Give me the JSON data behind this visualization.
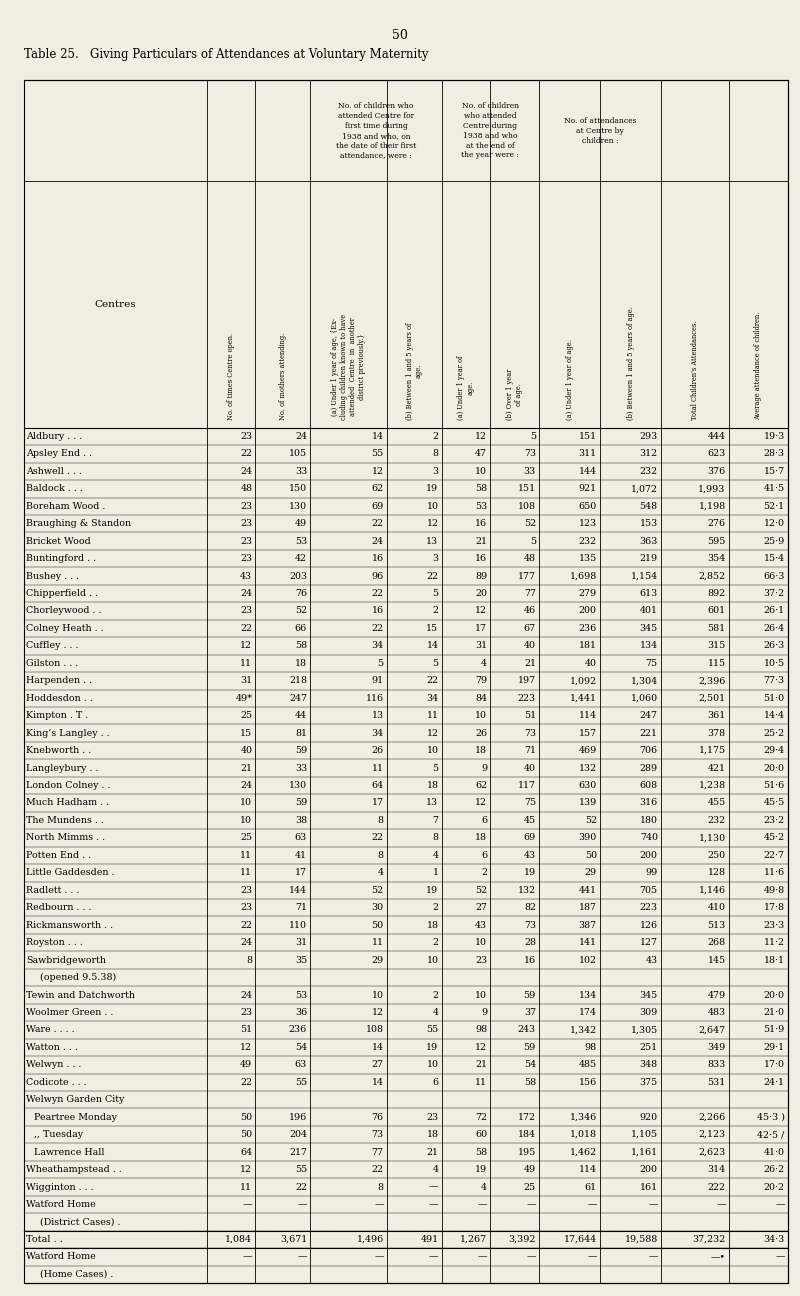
{
  "page_number": "50",
  "title_line1": "Table 25.",
  "title_line2": "Giving Particulars of Attendances at Voluntary Maternity",
  "bg_color": "#f2ede0",
  "group1_text": "No. of children who\nattended Centre for\nfirst time during\n1938 and who, on\nthe date of their first\nattendance, were :",
  "group2_text": "No. of children\nwho attended\nCentre during\n1938 and who\nat the end of\nthe year were :",
  "group3_text": "No. of attendances\nat Centre by\nchildren :",
  "col_header_0": "Centres",
  "col_header_1": "No. of times Centre open.",
  "col_header_2": "No. of mothers attending.",
  "col_header_3": "(a) Under 1 year of age, {Ex-\ncluding children known to have\nattended  Centre  in  another\ndistrict previously.}",
  "col_header_4": "(b) Between 1 and 5 years of\nage.",
  "col_header_5": "(a) Under 1 year of\nage.",
  "col_header_6": "(b) Over 1 year\nof age.",
  "col_header_7": "(a) Under 1 year of age.",
  "col_header_8": "(b) Between 1 and 5 years of age.",
  "col_header_9": "Total Children's Attendances.",
  "col_header_10": "Average attendance of children.",
  "rows": [
    [
      "Aldbury . . .",
      "23",
      "24",
      "14",
      "2",
      "12",
      "5",
      "151",
      "293",
      "444",
      "19·3"
    ],
    [
      "Apsley End . .",
      "22",
      "105",
      "55",
      "8",
      "47",
      "73",
      "311",
      "312",
      "623",
      "28·3"
    ],
    [
      "Ashwell . . .",
      "24",
      "33",
      "12",
      "3",
      "10",
      "33",
      "144",
      "232",
      "376",
      "15·7"
    ],
    [
      "Baldock . . .",
      "48",
      "150",
      "62",
      "19",
      "58",
      "151",
      "921",
      "1,072",
      "1,993",
      "41·5"
    ],
    [
      "Boreham Wood .",
      "23",
      "130",
      "69",
      "10",
      "53",
      "108",
      "650",
      "548",
      "1,198",
      "52·1"
    ],
    [
      "Braughing & Standon",
      "23",
      "49",
      "22",
      "12",
      "16",
      "52",
      "123",
      "153",
      "276",
      "12·0"
    ],
    [
      "Bricket Wood",
      "23",
      "53",
      "24",
      "13",
      "21",
      "5",
      "232",
      "363",
      "595",
      "25·9"
    ],
    [
      "Buntingford . .",
      "23",
      "42",
      "16",
      "3",
      "16",
      "48",
      "135",
      "219",
      "354",
      "15·4"
    ],
    [
      "Bushey . . .",
      "43",
      "203",
      "96",
      "22",
      "89",
      "177",
      "1,698",
      "1,154",
      "2,852",
      "66·3"
    ],
    [
      "Chipperfield . .",
      "24",
      "76",
      "22",
      "5",
      "20",
      "77",
      "279",
      "613",
      "892",
      "37·2"
    ],
    [
      "Chorleywood . .",
      "23",
      "52",
      "16",
      "2",
      "12",
      "46",
      "200",
      "401",
      "601",
      "26·1"
    ],
    [
      "Colney Heath . .",
      "22",
      "66",
      "22",
      "15",
      "17",
      "67",
      "236",
      "345",
      "581",
      "26·4"
    ],
    [
      "Cuffley . . .",
      "12",
      "58",
      "34",
      "14",
      "31",
      "40",
      "181",
      "134",
      "315",
      "26·3"
    ],
    [
      "Gilston . . .",
      "11",
      "18",
      "5",
      "5",
      "4",
      "21",
      "40",
      "75",
      "115",
      "10·5"
    ],
    [
      "Harpenden . .",
      "31",
      "218",
      "91",
      "22",
      "79",
      "197",
      "1,092",
      "1,304",
      "2,396",
      "77·3"
    ],
    [
      "Hoddesdon . .",
      "49*",
      "247",
      "116",
      "34",
      "84",
      "223",
      "1,441",
      "1,060",
      "2,501",
      "51·0"
    ],
    [
      "Kimpton . T .",
      "25",
      "44",
      "13",
      "11",
      "10",
      "51",
      "114",
      "247",
      "361",
      "14·4"
    ],
    [
      "King’s Langley . .",
      "15",
      "81",
      "34",
      "12",
      "26",
      "73",
      "157",
      "221",
      "378",
      "25·2"
    ],
    [
      "Knebworth . .",
      "40",
      "59",
      "26",
      "10",
      "18",
      "71",
      "469",
      "706",
      "1,175",
      "29·4"
    ],
    [
      "Langleybury . .",
      "21",
      "33",
      "11",
      "5",
      "9",
      "40",
      "132",
      "289",
      "421",
      "20·0"
    ],
    [
      "London Colney . .",
      "24",
      "130",
      "64",
      "18",
      "62",
      "117",
      "630",
      "608",
      "1,238",
      "51·6"
    ],
    [
      "Much Hadham . .",
      "10",
      "59",
      "17",
      "13",
      "12",
      "75",
      "139",
      "316",
      "455",
      "45·5"
    ],
    [
      "The Mundens . .",
      "10",
      "38",
      "8",
      "7",
      "6",
      "45",
      "52",
      "180",
      "232",
      "23·2"
    ],
    [
      "North Mimms . .",
      "25",
      "63",
      "22",
      "8",
      "18",
      "69",
      "390",
      "740",
      "1,130",
      "45·2"
    ],
    [
      "Potten End . .",
      "11",
      "41",
      "8",
      "4",
      "6",
      "43",
      "50",
      "200",
      "250",
      "22·7"
    ],
    [
      "Little Gaddesden .",
      "11",
      "17",
      "4",
      "1",
      "2",
      "19",
      "29",
      "99",
      "128",
      "11·6"
    ],
    [
      "Radlett . . .",
      "23",
      "144",
      "52",
      "19",
      "52",
      "132",
      "441",
      "705",
      "1,146",
      "49·8"
    ],
    [
      "Redbourn . . .",
      "23",
      "71",
      "30",
      "2",
      "27",
      "82",
      "187",
      "223",
      "410",
      "17·8"
    ],
    [
      "Rickmansworth . .",
      "22",
      "110",
      "50",
      "18",
      "43",
      "73",
      "387",
      "126",
      "513",
      "23·3"
    ],
    [
      "Royston . . .",
      "24",
      "31",
      "11",
      "2",
      "10",
      "28",
      "141",
      "127",
      "268",
      "11·2"
    ],
    [
      "Sawbridgeworth",
      "8",
      "35",
      "29",
      "10",
      "23",
      "16",
      "102",
      "43",
      "145",
      "18·1"
    ],
    [
      "  (opened 9.5.38)",
      "",
      "",
      "",
      "",
      "",
      "",
      "",
      "",
      "",
      ""
    ],
    [
      "Tewin and Datchworth",
      "24",
      "53",
      "10",
      "2",
      "10",
      "59",
      "134",
      "345",
      "479",
      "20·0"
    ],
    [
      "Woolmer Green . .",
      "23",
      "36",
      "12",
      "4",
      "9",
      "37",
      "174",
      "309",
      "483",
      "21·0"
    ],
    [
      "Ware . . . .",
      "51",
      "236",
      "108",
      "55",
      "98",
      "243",
      "1,342",
      "1,305",
      "2,647",
      "51·9"
    ],
    [
      "Watton . . .",
      "12",
      "54",
      "14",
      "19",
      "12",
      "59",
      "98",
      "251",
      "349",
      "29·1"
    ],
    [
      "Welwyn . . .",
      "49",
      "63",
      "27",
      "10",
      "21",
      "54",
      "485",
      "348",
      "833",
      "17·0"
    ],
    [
      "Codicote . . .",
      "22",
      "55",
      "14",
      "6",
      "11",
      "58",
      "156",
      "375",
      "531",
      "24·1"
    ],
    [
      "Welwyn Garden City",
      "",
      "",
      "",
      "",
      "",
      "",
      "",
      "",
      "",
      ""
    ],
    [
      "Peartree Monday",
      "50",
      "196",
      "76",
      "23",
      "72",
      "172",
      "1,346",
      "920",
      "2,266",
      "45·3 )"
    ],
    [
      ",, Tuesday",
      "50",
      "204",
      "73",
      "18",
      "60",
      "184",
      "1,018",
      "1,105",
      "2,123",
      "42·5 /"
    ],
    [
      "Lawrence Hall",
      "64",
      "217",
      "77",
      "21",
      "58",
      "195",
      "1,462",
      "1,161",
      "2,623",
      "41·0"
    ],
    [
      "Wheathampstead . .",
      "12",
      "55",
      "22",
      "4",
      "19",
      "49",
      "114",
      "200",
      "314",
      "26·2"
    ],
    [
      "Wigginton . . .",
      "11",
      "22",
      "8",
      "—",
      "4",
      "25",
      "61",
      "161",
      "222",
      "20·2"
    ],
    [
      "Watford Home",
      "—",
      "—",
      "—",
      "—",
      "—",
      "—",
      "—",
      "—",
      "—",
      "—"
    ],
    [
      "  (District Cases) .",
      "",
      "",
      "",
      "",
      "",
      "",
      "",
      "",
      "",
      ""
    ],
    [
      "Total . .",
      "1,084",
      "3,671",
      "1,496",
      "491",
      "1,267",
      "3,392",
      "17,644",
      "19,588",
      "37,232",
      "34·3"
    ],
    [
      "Watford Home",
      "—",
      "—",
      "—",
      "—",
      "—",
      "—",
      "—",
      "—",
      "—•",
      "—"
    ],
    [
      "  (Home Cases) .",
      "",
      "",
      "",
      "",
      "",
      "",
      "",
      "",
      "",
      ""
    ]
  ],
  "total_row_idx": 46,
  "col_props": [
    0.21,
    0.056,
    0.063,
    0.088,
    0.063,
    0.056,
    0.056,
    0.07,
    0.07,
    0.078,
    0.068
  ]
}
